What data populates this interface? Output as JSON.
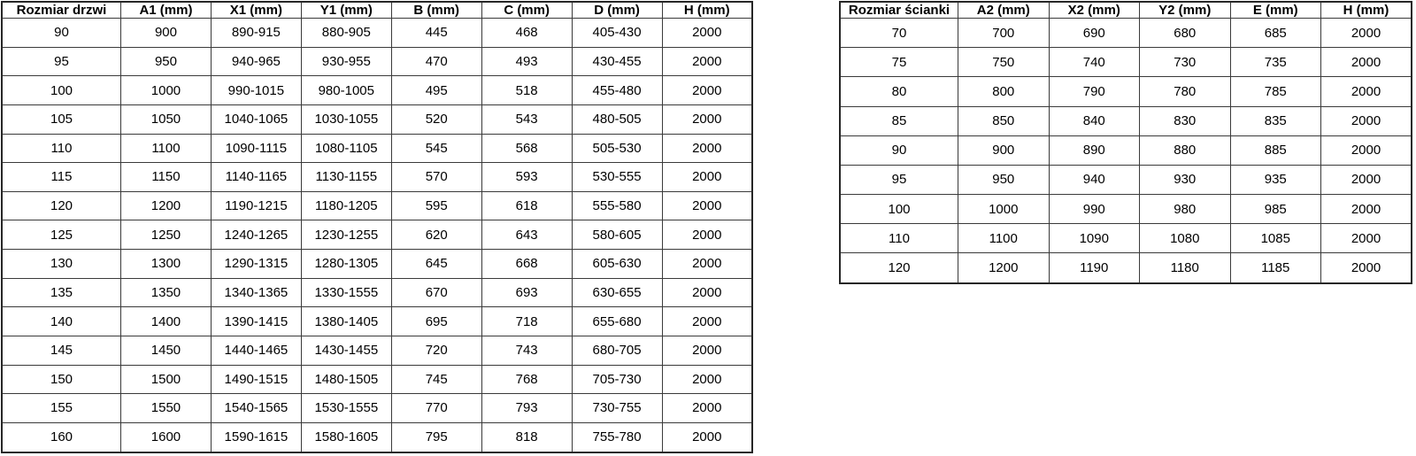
{
  "page": {
    "background_color": "#ffffff",
    "text_color": "#000000",
    "border_color": "#3a3a3a"
  },
  "door_table": {
    "headers": [
      "Rozmiar drzwi",
      "A1 (mm)",
      "X1 (mm)",
      "Y1 (mm)",
      "B (mm)",
      "C (mm)",
      "D (mm)",
      "H (mm)"
    ],
    "rows": [
      [
        "90",
        "900",
        "890-915",
        "880-905",
        "445",
        "468",
        "405-430",
        "2000"
      ],
      [
        "95",
        "950",
        "940-965",
        "930-955",
        "470",
        "493",
        "430-455",
        "2000"
      ],
      [
        "100",
        "1000",
        "990-1015",
        "980-1005",
        "495",
        "518",
        "455-480",
        "2000"
      ],
      [
        "105",
        "1050",
        "1040-1065",
        "1030-1055",
        "520",
        "543",
        "480-505",
        "2000"
      ],
      [
        "110",
        "1100",
        "1090-1115",
        "1080-1105",
        "545",
        "568",
        "505-530",
        "2000"
      ],
      [
        "115",
        "1150",
        "1140-1165",
        "1130-1155",
        "570",
        "593",
        "530-555",
        "2000"
      ],
      [
        "120",
        "1200",
        "1190-1215",
        "1180-1205",
        "595",
        "618",
        "555-580",
        "2000"
      ],
      [
        "125",
        "1250",
        "1240-1265",
        "1230-1255",
        "620",
        "643",
        "580-605",
        "2000"
      ],
      [
        "130",
        "1300",
        "1290-1315",
        "1280-1305",
        "645",
        "668",
        "605-630",
        "2000"
      ],
      [
        "135",
        "1350",
        "1340-1365",
        "1330-1555",
        "670",
        "693",
        "630-655",
        "2000"
      ],
      [
        "140",
        "1400",
        "1390-1415",
        "1380-1405",
        "695",
        "718",
        "655-680",
        "2000"
      ],
      [
        "145",
        "1450",
        "1440-1465",
        "1430-1455",
        "720",
        "743",
        "680-705",
        "2000"
      ],
      [
        "150",
        "1500",
        "1490-1515",
        "1480-1505",
        "745",
        "768",
        "705-730",
        "2000"
      ],
      [
        "155",
        "1550",
        "1540-1565",
        "1530-1555",
        "770",
        "793",
        "730-755",
        "2000"
      ],
      [
        "160",
        "1600",
        "1590-1615",
        "1580-1605",
        "795",
        "818",
        "755-780",
        "2000"
      ]
    ]
  },
  "wall_table": {
    "headers": [
      "Rozmiar ścianki",
      "A2 (mm)",
      "X2 (mm)",
      "Y2 (mm)",
      "E (mm)",
      "H (mm)"
    ],
    "rows": [
      [
        "70",
        "700",
        "690",
        "680",
        "685",
        "2000"
      ],
      [
        "75",
        "750",
        "740",
        "730",
        "735",
        "2000"
      ],
      [
        "80",
        "800",
        "790",
        "780",
        "785",
        "2000"
      ],
      [
        "85",
        "850",
        "840",
        "830",
        "835",
        "2000"
      ],
      [
        "90",
        "900",
        "890",
        "880",
        "885",
        "2000"
      ],
      [
        "95",
        "950",
        "940",
        "930",
        "935",
        "2000"
      ],
      [
        "100",
        "1000",
        "990",
        "980",
        "985",
        "2000"
      ],
      [
        "110",
        "1100",
        "1090",
        "1080",
        "1085",
        "2000"
      ],
      [
        "120",
        "1200",
        "1190",
        "1180",
        "1185",
        "2000"
      ]
    ]
  }
}
